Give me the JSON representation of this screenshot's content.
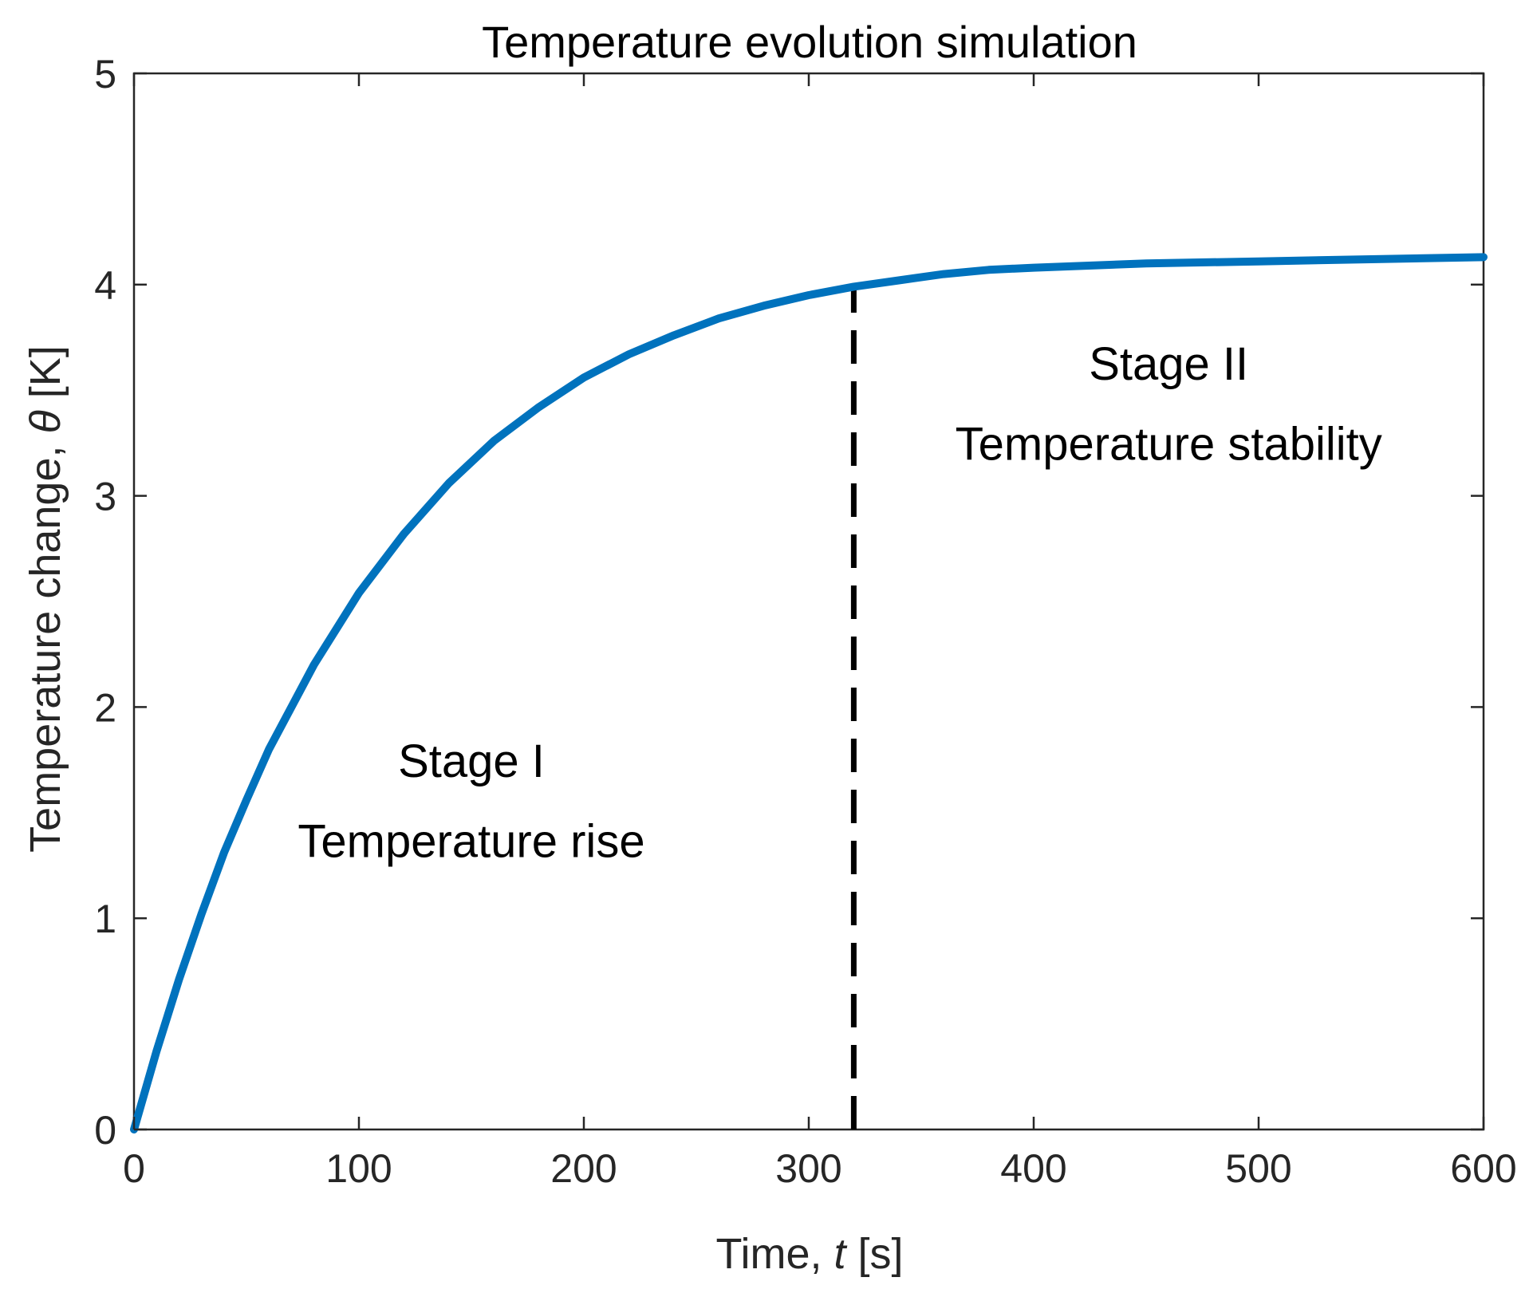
{
  "chart_data": {
    "type": "line",
    "title": "Temperature evolution simulation",
    "xlabel": {
      "prefix": "Time, ",
      "symbol": "t",
      "suffix": " [s]"
    },
    "ylabel": {
      "prefix": "Temperature change, ",
      "symbol": "θ",
      "suffix": " [K]"
    },
    "xlim": [
      0,
      600
    ],
    "ylim": [
      0,
      5
    ],
    "xticks": [
      0,
      100,
      200,
      300,
      400,
      500,
      600
    ],
    "yticks": [
      0,
      1,
      2,
      3,
      4,
      5
    ],
    "grid": false,
    "series": [
      {
        "name": "Temperature change",
        "color": "#0072BD",
        "x": [
          0,
          10,
          20,
          30,
          40,
          50,
          60,
          80,
          100,
          120,
          140,
          160,
          180,
          200,
          220,
          240,
          260,
          280,
          300,
          320,
          340,
          360,
          380,
          400,
          450,
          500,
          550,
          600
        ],
        "y": [
          0.0,
          0.37,
          0.71,
          1.02,
          1.31,
          1.56,
          1.8,
          2.2,
          2.54,
          2.82,
          3.06,
          3.26,
          3.42,
          3.56,
          3.67,
          3.76,
          3.84,
          3.9,
          3.95,
          3.99,
          4.02,
          4.05,
          4.07,
          4.08,
          4.1,
          4.11,
          4.12,
          4.13
        ]
      }
    ],
    "vline": {
      "x": 320,
      "y_from": 0,
      "y_to": 3.99,
      "style": "dashed",
      "color": "#000000"
    },
    "annotations": [
      {
        "id": "stage1-title",
        "text": "Stage I",
        "x": 150,
        "y": 1.67
      },
      {
        "id": "stage1-desc",
        "text": "Temperature rise",
        "x": 150,
        "y": 1.29
      },
      {
        "id": "stage2-title",
        "text": "Stage II",
        "x": 460,
        "y": 3.55
      },
      {
        "id": "stage2-desc",
        "text": "Temperature stability",
        "x": 460,
        "y": 3.17
      }
    ]
  }
}
